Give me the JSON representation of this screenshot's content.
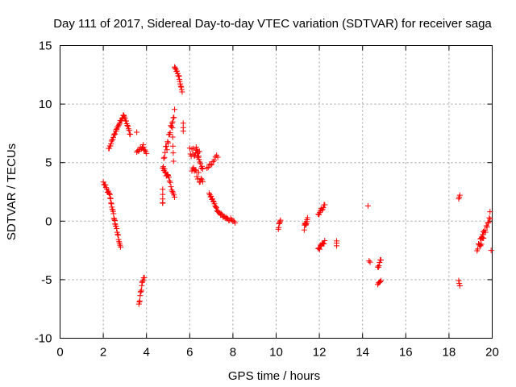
{
  "chart_data": {
    "type": "scatter",
    "title": "Day 111 of 2017, Sidereal Day-to-day VTEC variation (SDTVAR) for receiver saga",
    "xlabel": "GPS time / hours",
    "ylabel": "SDTVAR / TECUs",
    "xlim": [
      0,
      20
    ],
    "ylim": [
      -10,
      15
    ],
    "xticks": [
      0,
      2,
      4,
      6,
      8,
      10,
      12,
      14,
      16,
      18,
      20
    ],
    "yticks": [
      -10,
      -5,
      0,
      5,
      10,
      15
    ],
    "xtick_labels": [
      "0",
      "2",
      "4",
      "6",
      "8",
      "10",
      "12",
      "14",
      "16",
      "18",
      "20"
    ],
    "ytick_labels": [
      "-10",
      "-5",
      "0",
      "5",
      "10",
      "15"
    ],
    "grid": true,
    "marker": "+",
    "color": "#ff0000",
    "series": [
      {
        "name": "saga",
        "segments": [
          [
            2.0,
            3.3,
            2.3,
            2.2,
            10,
            0.15
          ],
          [
            2.3,
            2.2,
            2.55,
            -0.2,
            14,
            0.15
          ],
          [
            2.55,
            -0.2,
            2.8,
            -2.2,
            12,
            0.15
          ],
          [
            2.25,
            6.1,
            2.6,
            7.8,
            14,
            0.12
          ],
          [
            2.6,
            7.8,
            2.95,
            9.1,
            14,
            0.1
          ],
          [
            2.95,
            9.1,
            3.25,
            7.4,
            12,
            0.12
          ],
          [
            3.55,
            7.6,
            3.55,
            7.6,
            1,
            0
          ],
          [
            3.55,
            5.9,
            3.85,
            6.4,
            8,
            0.15
          ],
          [
            3.85,
            6.3,
            4.0,
            5.8,
            5,
            0.12
          ],
          [
            3.65,
            -7.2,
            3.8,
            -5.3,
            9,
            0.2
          ],
          [
            3.8,
            -5.3,
            3.9,
            -4.7,
            4,
            0.15
          ],
          [
            4.75,
            1.4,
            4.75,
            2.6,
            5,
            0.2
          ],
          [
            4.75,
            4.6,
            5.0,
            3.8,
            10,
            0.2
          ],
          [
            5.0,
            3.8,
            5.3,
            2.0,
            10,
            0.15
          ],
          [
            4.8,
            5.2,
            5.3,
            9.5,
            18,
            0.5
          ],
          [
            5.2,
            7.8,
            5.25,
            5.0,
            5,
            0.2
          ],
          [
            5.3,
            13.2,
            5.5,
            12.4,
            8,
            0.1
          ],
          [
            5.5,
            12.4,
            5.65,
            11.0,
            8,
            0.1
          ],
          [
            5.7,
            8.4,
            5.7,
            7.7,
            3,
            0.1
          ],
          [
            6.0,
            5.9,
            6.45,
            5.7,
            14,
            0.4
          ],
          [
            6.1,
            4.5,
            6.6,
            3.5,
            14,
            0.5
          ],
          [
            6.3,
            6.2,
            6.6,
            4.2,
            10,
            0.3
          ],
          [
            6.8,
            4.5,
            7.3,
            5.6,
            10,
            0.15
          ],
          [
            6.9,
            2.4,
            7.3,
            0.8,
            14,
            0.12
          ],
          [
            7.3,
            0.8,
            7.85,
            0.0,
            14,
            0.1
          ],
          [
            7.9,
            0.3,
            8.1,
            -0.2,
            5,
            0.1
          ],
          [
            10.1,
            -0.6,
            10.2,
            0.0,
            6,
            0.2
          ],
          [
            11.3,
            -0.6,
            11.45,
            0.3,
            10,
            0.25
          ],
          [
            11.95,
            0.6,
            12.25,
            1.4,
            10,
            0.15
          ],
          [
            11.95,
            -2.4,
            12.25,
            -1.7,
            10,
            0.2
          ],
          [
            12.8,
            -1.7,
            12.8,
            -2.1,
            3,
            0.05
          ],
          [
            14.25,
            1.3,
            14.25,
            1.3,
            1,
            0
          ],
          [
            14.3,
            -3.4,
            14.35,
            -3.5,
            2,
            0
          ],
          [
            14.7,
            -4.0,
            14.85,
            -3.3,
            6,
            0.15
          ],
          [
            14.7,
            -5.4,
            14.85,
            -5.1,
            5,
            0.05
          ],
          [
            18.45,
            1.9,
            18.5,
            2.2,
            3,
            0.05
          ],
          [
            18.45,
            -5.1,
            18.5,
            -5.5,
            3,
            0.05
          ],
          [
            19.3,
            -2.3,
            19.6,
            -1.5,
            10,
            0.25
          ],
          [
            19.45,
            -1.8,
            19.9,
            0.2,
            14,
            0.3
          ],
          [
            19.9,
            0.8,
            19.9,
            0.8,
            1,
            0
          ],
          [
            19.95,
            -2.5,
            19.95,
            -2.5,
            1,
            0
          ]
        ]
      }
    ]
  }
}
